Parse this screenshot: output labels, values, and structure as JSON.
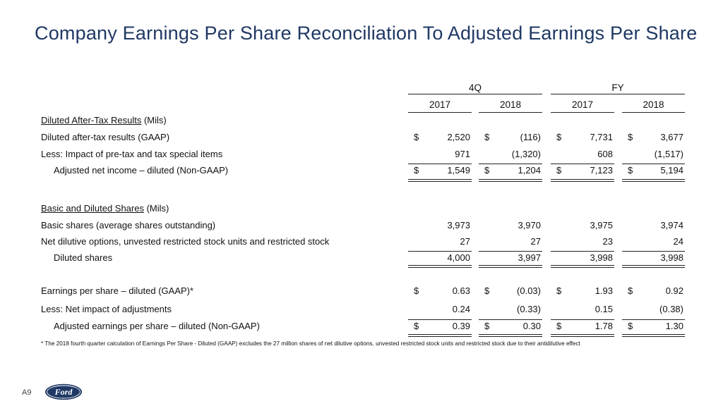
{
  "title": "Company Earnings Per Share Reconciliation To Adjusted Earnings Per Share",
  "headers": {
    "groups": [
      "4Q",
      "FY"
    ],
    "years": [
      "2017",
      "2018",
      "2017",
      "2018"
    ]
  },
  "sections": {
    "results_title": "Diluted After-Tax Results",
    "results_unit": " (Mils)",
    "shares_title": "Basic and Diluted Shares",
    "shares_unit": " (Mils)"
  },
  "rows": [
    {
      "label": "Diluted after-tax results (GAAP)",
      "dollar": true,
      "values": [
        "2,520",
        "(116)",
        "7,731",
        "3,677"
      ]
    },
    {
      "label": "Less:  Impact of pre-tax and tax special items",
      "dollar": false,
      "values": [
        "971",
        "(1,320)",
        "608",
        "(1,517)"
      ]
    },
    {
      "label": "Adjusted net income – diluted (Non-GAAP)",
      "dollar": true,
      "values": [
        "1,549",
        "1,204",
        "7,123",
        "5,194"
      ]
    },
    {
      "label": "Basic shares (average shares outstanding)",
      "dollar": false,
      "values": [
        "3,973",
        "3,970",
        "3,975",
        "3,974"
      ]
    },
    {
      "label": "Net dilutive options, unvested restricted stock units and restricted stock",
      "dollar": false,
      "values": [
        "27",
        "27",
        "23",
        "24"
      ]
    },
    {
      "label": "Diluted shares",
      "dollar": false,
      "values": [
        "4,000",
        "3,997",
        "3,998",
        "3,998"
      ]
    },
    {
      "label": "Earnings per share – diluted (GAAP)*",
      "dollar": true,
      "values": [
        "0.63",
        "(0.03)",
        "1.93",
        "0.92"
      ]
    },
    {
      "label": "Less:  Net impact of adjustments",
      "dollar": false,
      "values": [
        "0.24",
        "(0.33)",
        "0.15",
        "(0.38)"
      ]
    },
    {
      "label": "Adjusted earnings per share – diluted (Non-GAAP)",
      "dollar": true,
      "values": [
        "0.39",
        "0.30",
        "1.78",
        "1.30"
      ]
    }
  ],
  "dollar_sign": "$",
  "footnote": "* The 2018 fourth quarter calculation of Earnings Per Share - Diluted (GAAP) excludes the 27 million shares of net dilutive options, unvested restricted stock units and restricted stock due to their antidilutive effect",
  "page_number": "A9",
  "logo": {
    "text": "Ford",
    "name": "ford-oval-logo",
    "color": "#1f3864"
  }
}
